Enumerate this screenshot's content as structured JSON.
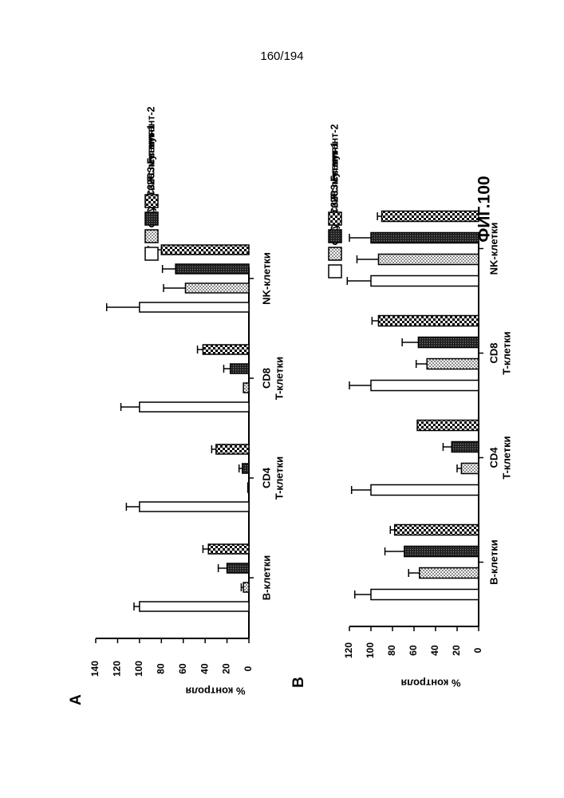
{
  "page_number": "160/194",
  "figure_label": "ФИГ.100",
  "colors": {
    "ink": "#000000",
    "paper": "#ffffff"
  },
  "legend": [
    {
      "label": "В отсутствие лечения",
      "pattern": "white"
    },
    {
      "label": "2C3",
      "pattern": "light-dots"
    },
    {
      "label": "2C3 Fc мутант-1",
      "pattern": "dark-dots"
    },
    {
      "label": "2C3 Fc мутант-2",
      "pattern": "checker"
    }
  ],
  "chart_data": [
    {
      "panel": "A",
      "type": "bar",
      "orientation": "rotated-90-ccw",
      "ylabel": "% контроля",
      "ylim": [
        0,
        140
      ],
      "yticks": [
        0,
        20,
        40,
        60,
        80,
        100,
        120,
        140
      ],
      "categories": [
        "B-клетки",
        "CD4\nT-клетки",
        "CD8\nT-клетки",
        "NK-клетки"
      ],
      "series": [
        {
          "name": "В отсутствие лечения",
          "values": [
            100,
            100,
            100,
            100
          ],
          "errors": [
            5,
            12,
            17,
            30
          ]
        },
        {
          "name": "2C3",
          "values": [
            5,
            1,
            5,
            58
          ],
          "errors": [
            2,
            0,
            0,
            20
          ]
        },
        {
          "name": "2C3 Fc мутант-1",
          "values": [
            20,
            6,
            17,
            67
          ],
          "errors": [
            8,
            3,
            6,
            12
          ]
        },
        {
          "name": "2C3 Fc мутант-2",
          "values": [
            37,
            30,
            42,
            80
          ],
          "errors": [
            5,
            4,
            5,
            12
          ]
        }
      ]
    },
    {
      "panel": "B",
      "type": "bar",
      "orientation": "rotated-90-ccw",
      "ylabel": "% контроля",
      "ylim": [
        0,
        120
      ],
      "yticks": [
        0,
        20,
        40,
        60,
        80,
        100,
        120
      ],
      "categories": [
        "B-клетки",
        "CD4\nT-клетки",
        "CD8\nT-клетки",
        "NK-клетки"
      ],
      "series": [
        {
          "name": "В отсутствие лечения",
          "values": [
            100,
            100,
            100,
            100
          ],
          "errors": [
            15,
            18,
            20,
            22
          ]
        },
        {
          "name": "2C3",
          "values": [
            55,
            16,
            48,
            93
          ],
          "errors": [
            10,
            4,
            10,
            20
          ]
        },
        {
          "name": "2C3 Fc мутант-1",
          "values": [
            69,
            25,
            56,
            100
          ],
          "errors": [
            18,
            8,
            15,
            20
          ]
        },
        {
          "name": "2C3 Fc мутант-2",
          "values": [
            78,
            57,
            93,
            90
          ],
          "errors": [
            4,
            0,
            6,
            4
          ]
        }
      ]
    }
  ]
}
